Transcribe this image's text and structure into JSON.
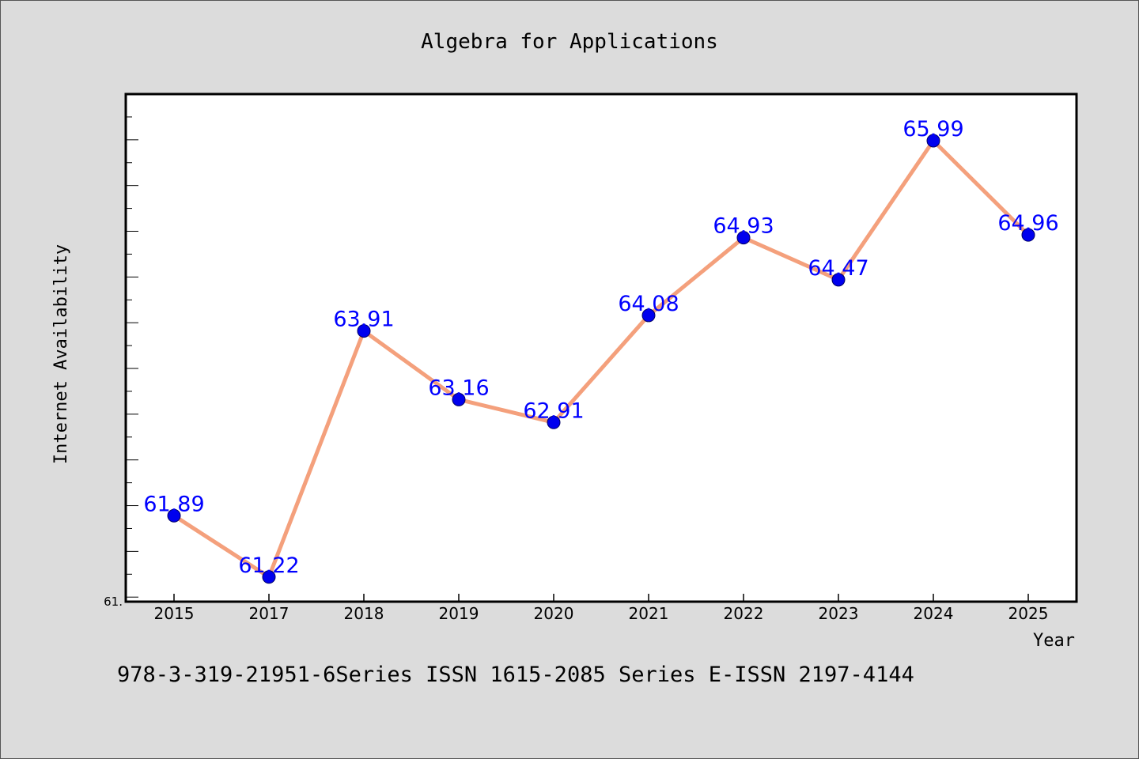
{
  "chart_data": {
    "type": "line",
    "title": "Algebra for Applications",
    "xlabel": "Year",
    "ylabel": "Internet Availability",
    "categories": [
      "2015",
      "2017",
      "2018",
      "2019",
      "2020",
      "2021",
      "2022",
      "2023",
      "2024",
      "2025"
    ],
    "series": [
      {
        "values": [
          61.89,
          61.22,
          63.91,
          63.16,
          62.91,
          64.08,
          64.93,
          64.47,
          65.99,
          64.96
        ]
      }
    ],
    "data_labels": [
      "61.89",
      "61.22",
      "63.91",
      "63.16",
      "62.91",
      "64.08",
      "64.93",
      "64.47",
      "65.99",
      "64.96"
    ],
    "ylim": [
      60.95,
      66.5
    ],
    "y_tick_label": "61.",
    "y_tick_label_value": 60.95,
    "grid": false,
    "colors": {
      "line": "#f4a07c",
      "marker": "#0000ee",
      "data_label": "#0000ff",
      "background": "#dcdcdc",
      "plot_area": "#ffffff"
    }
  },
  "footer_text": "978-3-319-21951-6Series ISSN 1615-2085 Series E-ISSN 2197-4144"
}
